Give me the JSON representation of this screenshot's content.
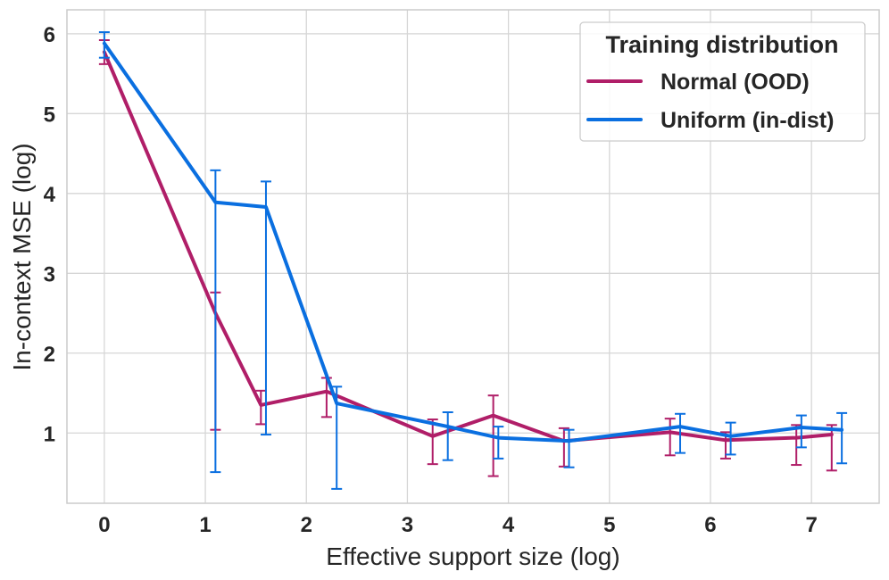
{
  "chart_data": {
    "type": "line",
    "title": "",
    "xlabel": "Effective support size (log)",
    "ylabel": "In-context MSE (log)",
    "xlim": [
      -0.37,
      7.67
    ],
    "ylim": [
      0.12,
      6.3
    ],
    "xticks": [
      0,
      1,
      2,
      3,
      4,
      5,
      6,
      7
    ],
    "yticks": [
      1,
      2,
      3,
      4,
      5,
      6
    ],
    "xtick_labels": [
      "0",
      "1",
      "2",
      "3",
      "4",
      "5",
      "6",
      "7"
    ],
    "ytick_labels": [
      "1",
      "2",
      "3",
      "4",
      "5",
      "6"
    ],
    "grid": true,
    "legend": {
      "title": "Training distribution",
      "placement": "top-right",
      "entries": [
        "Normal (OOD)",
        "Uniform (in-dist)"
      ]
    },
    "series": [
      {
        "name": "Normal (OOD)",
        "color": "#b01e68",
        "x": [
          0,
          1.1,
          1.55,
          2.2,
          3.25,
          3.85,
          4.55,
          5.6,
          6.15,
          6.85,
          7.2
        ],
        "y": [
          5.77,
          2.5,
          1.35,
          1.52,
          0.96,
          1.22,
          0.9,
          1.01,
          0.91,
          0.94,
          0.98
        ],
        "err_low": [
          5.62,
          1.04,
          1.11,
          1.2,
          0.61,
          0.46,
          0.58,
          0.72,
          0.68,
          0.6,
          0.53
        ],
        "err_high": [
          5.92,
          2.76,
          1.53,
          1.69,
          1.17,
          1.47,
          1.06,
          1.18,
          1.01,
          1.1,
          1.1
        ]
      },
      {
        "name": "Uniform (in-dist)",
        "color": "#0a6fe0",
        "x": [
          0,
          1.1,
          1.6,
          2.3,
          3.4,
          3.9,
          4.6,
          5.7,
          6.2,
          6.9,
          7.3
        ],
        "y": [
          5.88,
          3.89,
          3.83,
          1.37,
          1.08,
          0.94,
          0.9,
          1.08,
          0.96,
          1.07,
          1.04
        ],
        "err_low": [
          5.7,
          0.51,
          0.98,
          0.3,
          0.66,
          0.68,
          0.57,
          0.75,
          0.73,
          0.82,
          0.62
        ],
        "err_high": [
          6.02,
          4.29,
          4.15,
          1.58,
          1.26,
          1.08,
          1.04,
          1.24,
          1.13,
          1.22,
          1.25
        ]
      }
    ]
  }
}
